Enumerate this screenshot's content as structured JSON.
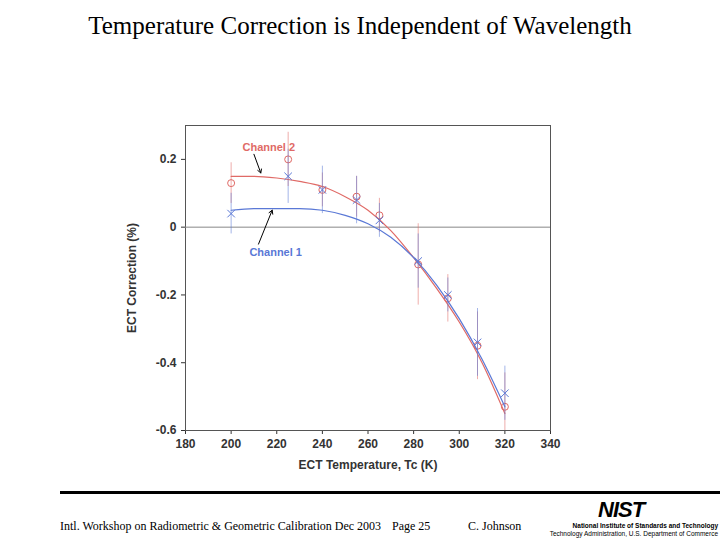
{
  "chart_data": {
    "type": "scatter",
    "title": "Temperature Correction is Independent of Wavelength",
    "x_label": "ECT Temperature, Tc (K)",
    "y_label": "ECT Correction (%)",
    "xlim": [
      180,
      340
    ],
    "xticks": [
      180,
      200,
      220,
      240,
      260,
      280,
      300,
      320,
      340
    ],
    "ylim": [
      -0.6,
      0.3
    ],
    "yticks": [
      -0.6,
      -0.4,
      -0.2,
      0,
      0.2
    ],
    "grid": false,
    "x": [
      200,
      225,
      240,
      255,
      265,
      282,
      295,
      308,
      320
    ],
    "fit_x": [
      200,
      210,
      220,
      230,
      240,
      250,
      260,
      270,
      280,
      290,
      300,
      310,
      320
    ],
    "series": [
      {
        "name": "Channel 2",
        "color": "#e06a66",
        "marker": "circle",
        "line_style": "solid",
        "values": [
          0.13,
          0.2,
          0.11,
          0.09,
          0.035,
          -0.11,
          -0.21,
          -0.35,
          -0.53
        ],
        "errors": [
          0.06,
          0.08,
          0.05,
          0.06,
          0.05,
          0.12,
          0.07,
          0.1,
          0.1
        ],
        "fit_values": [
          0.15,
          0.15,
          0.145,
          0.135,
          0.12,
          0.09,
          0.05,
          -0.01,
          -0.09,
          -0.18,
          -0.28,
          -0.4,
          -0.55
        ],
        "label_at": [
          205,
          0.235
        ],
        "arrow_from": [
          210,
          0.215
        ],
        "arrow_to": [
          213,
          0.16
        ]
      },
      {
        "name": "Channel 1",
        "color": "#5a78d6",
        "marker": "times",
        "line_style": "solid",
        "values": [
          0.04,
          0.15,
          0.11,
          0.08,
          0.02,
          -0.1,
          -0.2,
          -0.34,
          -0.49
        ],
        "errors": [
          0.06,
          0.08,
          0.07,
          0.07,
          0.05,
          0.08,
          0.05,
          0.1,
          0.08
        ],
        "fit_values": [
          0.05,
          0.055,
          0.055,
          0.055,
          0.05,
          0.035,
          0.01,
          -0.03,
          -0.09,
          -0.17,
          -0.27,
          -0.39,
          -0.53
        ],
        "label_at": [
          208,
          -0.076
        ],
        "arrow_from": [
          212,
          -0.05
        ],
        "arrow_to": [
          218,
          0.05
        ]
      }
    ],
    "footer": {
      "event": "Intl. Workshop on Radiometric & Geometric Calibration  Dec 2003",
      "page": "Page 25",
      "author": "C. Johnson",
      "logo": "NIST",
      "agency": "National Institute of Standards and Technology",
      "department": "Technology Administration, U.S. Department of Commerce"
    }
  }
}
